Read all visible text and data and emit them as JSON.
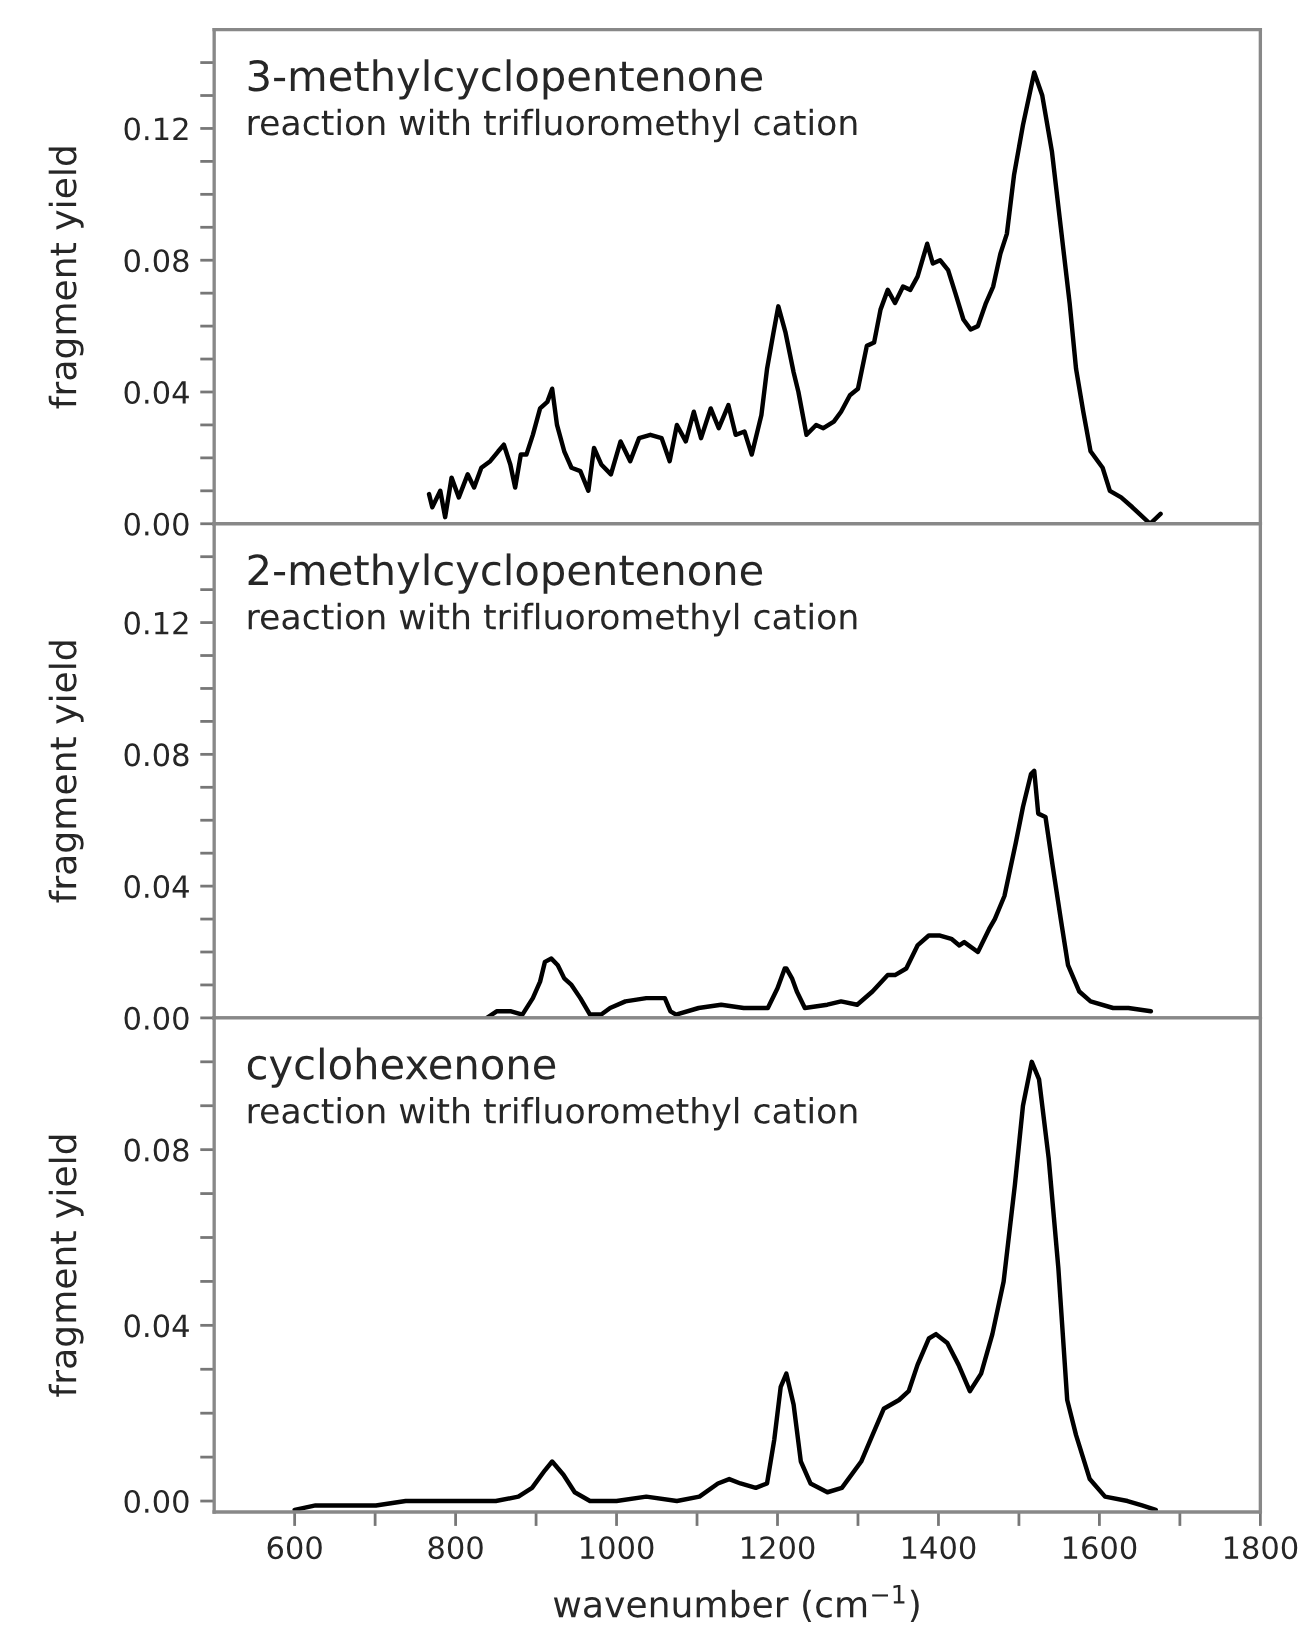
{
  "chart_data": [
    {
      "type": "line",
      "ylabel": "fragment yield",
      "annotations": [
        "3-methylcyclopentenone",
        "reaction with trifluoromethyl cation"
      ],
      "tick_labels": "y",
      "marker": "none",
      "line_style": "solid",
      "grid": false,
      "legend": false,
      "xlim": [
        500,
        1800
      ],
      "ylim": [
        0,
        0.15
      ],
      "xticks": [
        {
          "value": 600,
          "label": null
        },
        {
          "value": 700,
          "label": null
        },
        {
          "value": 800,
          "label": null
        },
        {
          "value": 900,
          "label": null
        },
        {
          "value": 1000,
          "label": null
        },
        {
          "value": 1100,
          "label": null
        },
        {
          "value": 1200,
          "label": null
        },
        {
          "value": 1300,
          "label": null
        },
        {
          "value": 1400,
          "label": null
        },
        {
          "value": 1500,
          "label": null
        },
        {
          "value": 1600,
          "label": null
        },
        {
          "value": 1700,
          "label": null
        }
      ],
      "yticks": [
        {
          "value": 0,
          "label": "0.00"
        },
        {
          "value": 0.01,
          "label": null
        },
        {
          "value": 0.02,
          "label": null
        },
        {
          "value": 0.03,
          "label": null
        },
        {
          "value": 0.04,
          "label": "0.04"
        },
        {
          "value": 0.05,
          "label": null
        },
        {
          "value": 0.06,
          "label": null
        },
        {
          "value": 0.07,
          "label": null
        },
        {
          "value": 0.08,
          "label": "0.08"
        },
        {
          "value": 0.09,
          "label": null
        },
        {
          "value": 0.1,
          "label": null
        },
        {
          "value": 0.11,
          "label": null
        },
        {
          "value": 0.12,
          "label": "0.12"
        },
        {
          "value": 0.13,
          "label": null
        },
        {
          "value": 0.14,
          "label": null
        }
      ],
      "series": [
        {
          "color": "#000000",
          "x": [
            767,
            771,
            781,
            787,
            795,
            804,
            815,
            823,
            832,
            843,
            853,
            860,
            868,
            874,
            881,
            888,
            896,
            905,
            914,
            920,
            926,
            935,
            944,
            955,
            965,
            972,
            981,
            993,
            1005,
            1017,
            1028,
            1042,
            1056,
            1066,
            1075,
            1086,
            1096,
            1105,
            1117,
            1127,
            1139,
            1148,
            1159,
            1168,
            1180,
            1187,
            1195,
            1201,
            1210,
            1220,
            1226,
            1236,
            1248,
            1257,
            1270,
            1279,
            1290,
            1300,
            1311,
            1320,
            1328,
            1337,
            1346,
            1356,
            1365,
            1374,
            1386,
            1393,
            1402,
            1412,
            1421,
            1431,
            1440,
            1449,
            1459,
            1468,
            1477,
            1485,
            1494,
            1505,
            1519,
            1529,
            1541,
            1552,
            1563,
            1571,
            1580,
            1589,
            1604,
            1613,
            1627,
            1641,
            1663,
            1676
          ],
          "values": [
            0.009,
            0.005,
            0.01,
            0.002,
            0.014,
            0.008,
            0.015,
            0.011,
            0.017,
            0.019,
            0.022,
            0.024,
            0.018,
            0.011,
            0.021,
            0.021,
            0.027,
            0.035,
            0.037,
            0.041,
            0.03,
            0.022,
            0.017,
            0.016,
            0.01,
            0.023,
            0.018,
            0.015,
            0.025,
            0.019,
            0.026,
            0.027,
            0.026,
            0.019,
            0.03,
            0.025,
            0.034,
            0.026,
            0.035,
            0.029,
            0.036,
            0.027,
            0.028,
            0.021,
            0.033,
            0.047,
            0.058,
            0.066,
            0.058,
            0.046,
            0.04,
            0.027,
            0.03,
            0.029,
            0.031,
            0.034,
            0.039,
            0.041,
            0.054,
            0.055,
            0.065,
            0.071,
            0.067,
            0.072,
            0.071,
            0.075,
            0.085,
            0.079,
            0.08,
            0.077,
            0.07,
            0.062,
            0.059,
            0.06,
            0.067,
            0.072,
            0.082,
            0.088,
            0.106,
            0.121,
            0.137,
            0.13,
            0.113,
            0.09,
            0.067,
            0.047,
            0.034,
            0.022,
            0.017,
            0.01,
            0.008,
            0.005,
            0.0,
            0.003
          ]
        }
      ]
    },
    {
      "type": "line",
      "ylabel": "fragment yield",
      "annotations": [
        "2-methylcyclopentenone",
        "reaction with trifluoromethyl cation"
      ],
      "tick_labels": "y",
      "marker": "none",
      "line_style": "solid",
      "grid": false,
      "legend": false,
      "xlim": [
        500,
        1800
      ],
      "ylim": [
        0,
        0.15
      ],
      "xticks": [
        {
          "value": 600,
          "label": null
        },
        {
          "value": 700,
          "label": null
        },
        {
          "value": 800,
          "label": null
        },
        {
          "value": 900,
          "label": null
        },
        {
          "value": 1000,
          "label": null
        },
        {
          "value": 1100,
          "label": null
        },
        {
          "value": 1200,
          "label": null
        },
        {
          "value": 1300,
          "label": null
        },
        {
          "value": 1400,
          "label": null
        },
        {
          "value": 1500,
          "label": null
        },
        {
          "value": 1600,
          "label": null
        },
        {
          "value": 1700,
          "label": null
        }
      ],
      "yticks": [
        {
          "value": 0,
          "label": "0.00"
        },
        {
          "value": 0.01,
          "label": null
        },
        {
          "value": 0.02,
          "label": null
        },
        {
          "value": 0.03,
          "label": null
        },
        {
          "value": 0.04,
          "label": "0.04"
        },
        {
          "value": 0.05,
          "label": null
        },
        {
          "value": 0.06,
          "label": null
        },
        {
          "value": 0.07,
          "label": null
        },
        {
          "value": 0.08,
          "label": "0.08"
        },
        {
          "value": 0.09,
          "label": null
        },
        {
          "value": 0.1,
          "label": null
        },
        {
          "value": 0.11,
          "label": null
        },
        {
          "value": 0.12,
          "label": "0.12"
        },
        {
          "value": 0.13,
          "label": null
        },
        {
          "value": 0.14,
          "label": null
        }
      ],
      "series": [
        {
          "color": "#000000",
          "x": [
            839,
            851,
            869,
            883,
            896,
            905,
            911,
            919,
            927,
            935,
            944,
            955,
            967,
            981,
            992,
            1011,
            1037,
            1060,
            1067,
            1074,
            1102,
            1130,
            1158,
            1188,
            1200,
            1209,
            1211,
            1218,
            1224,
            1234,
            1262,
            1279,
            1299,
            1318,
            1337,
            1346,
            1360,
            1374,
            1388,
            1402,
            1416,
            1426,
            1432,
            1449,
            1463,
            1470,
            1482,
            1496,
            1505,
            1515,
            1519,
            1524,
            1533,
            1542,
            1552,
            1561,
            1575,
            1589,
            1617,
            1636,
            1664
          ],
          "values": [
            0,
            0.002,
            0.002,
            0.001,
            0.006,
            0.011,
            0.017,
            0.018,
            0.016,
            0.012,
            0.01,
            0.006,
            0.001,
            0.001,
            0.003,
            0.005,
            0.006,
            0.006,
            0.002,
            0.001,
            0.003,
            0.004,
            0.003,
            0.003,
            0.009,
            0.015,
            0.015,
            0.012,
            0.008,
            0.003,
            0.004,
            0.005,
            0.004,
            0.008,
            0.013,
            0.013,
            0.015,
            0.022,
            0.025,
            0.025,
            0.024,
            0.022,
            0.023,
            0.02,
            0.027,
            0.03,
            0.037,
            0.053,
            0.064,
            0.074,
            0.075,
            0.062,
            0.061,
            0.046,
            0.03,
            0.016,
            0.008,
            0.005,
            0.003,
            0.003,
            0.002
          ]
        }
      ]
    },
    {
      "type": "line",
      "ylabel": "fragment yield",
      "xlabel": "wavenumber (cm$^{−1}$)",
      "annotations": [
        "cyclohexenone",
        "reaction with trifluoromethyl cation"
      ],
      "marker": "none",
      "line_style": "solid",
      "grid": false,
      "legend": false,
      "xlim": [
        500,
        1800
      ],
      "ylim": [
        -0.0025,
        0.11
      ],
      "xticks": [
        600,
        {
          "value": 700,
          "label": null
        },
        800,
        {
          "value": 900,
          "label": null
        },
        1000,
        {
          "value": 1100,
          "label": null
        },
        1200,
        {
          "value": 1300,
          "label": null
        },
        1400,
        {
          "value": 1500,
          "label": null
        },
        1600,
        {
          "value": 1700,
          "label": null
        },
        1800
      ],
      "yticks": [
        {
          "value": 0,
          "label": "0.00"
        },
        {
          "value": 0.01,
          "label": null
        },
        {
          "value": 0.02,
          "label": null
        },
        {
          "value": 0.03,
          "label": null
        },
        {
          "value": 0.04,
          "label": "0.04"
        },
        {
          "value": 0.05,
          "label": null
        },
        {
          "value": 0.06,
          "label": null
        },
        {
          "value": 0.07,
          "label": null
        },
        {
          "value": 0.08,
          "label": "0.08"
        },
        {
          "value": 0.09,
          "label": null
        },
        {
          "value": 0.1,
          "label": null
        }
      ],
      "series": [
        {
          "color": "#000000",
          "x": [
            600,
            626,
            664,
            701,
            738,
            775,
            813,
            850,
            878,
            895,
            911,
            920,
            934,
            948,
            967,
            1000,
            1037,
            1075,
            1103,
            1126,
            1140,
            1154,
            1173,
            1187,
            1196,
            1204,
            1211,
            1220,
            1229,
            1241,
            1262,
            1280,
            1304,
            1318,
            1332,
            1351,
            1363,
            1374,
            1388,
            1397,
            1411,
            1425,
            1439,
            1453,
            1467,
            1481,
            1495,
            1505,
            1516,
            1525,
            1537,
            1549,
            1560,
            1571,
            1588,
            1607,
            1635,
            1653,
            1670
          ],
          "values": [
            -0.002,
            -0.001,
            -0.001,
            -0.001,
            0.0,
            0.0,
            0.0,
            0.0,
            0.001,
            0.003,
            0.007,
            0.009,
            0.006,
            0.002,
            0.0,
            0.0,
            0.001,
            0.0,
            0.001,
            0.004,
            0.005,
            0.004,
            0.003,
            0.004,
            0.014,
            0.026,
            0.029,
            0.022,
            0.009,
            0.004,
            0.002,
            0.003,
            0.009,
            0.015,
            0.021,
            0.023,
            0.025,
            0.031,
            0.037,
            0.038,
            0.036,
            0.031,
            0.025,
            0.029,
            0.038,
            0.05,
            0.072,
            0.09,
            0.1,
            0.096,
            0.078,
            0.053,
            0.023,
            0.015,
            0.005,
            0.001,
            0.0,
            -0.001,
            -0.002
          ]
        }
      ]
    }
  ]
}
